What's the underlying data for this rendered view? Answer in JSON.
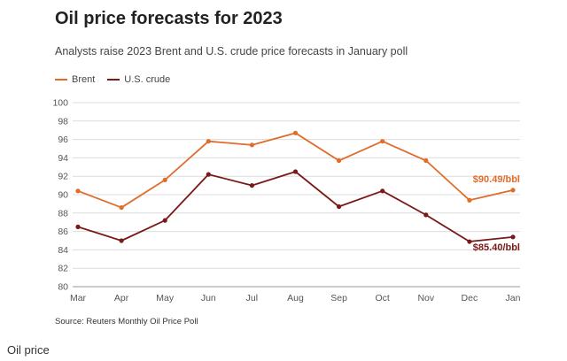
{
  "chart_data": {
    "type": "line",
    "title": "Oil price forecasts for 2023",
    "subtitle": "Analysts raise 2023 Brent and U.S. crude price forecasts in January poll",
    "categories": [
      "Mar",
      "Apr",
      "May",
      "Jun",
      "Jul",
      "Aug",
      "Sep",
      "Oct",
      "Nov",
      "Dec",
      "Jan"
    ],
    "ylim": [
      80,
      100
    ],
    "yticks": [
      80,
      82,
      84,
      86,
      88,
      90,
      92,
      94,
      96,
      98,
      100
    ],
    "grid": true,
    "legend_position": "top-left",
    "series": [
      {
        "name": "Brent",
        "color": "#e06c2a",
        "values": [
          90.4,
          88.6,
          91.6,
          95.8,
          95.4,
          96.7,
          93.7,
          95.8,
          93.7,
          89.4,
          90.49
        ],
        "end_label": "$90.49/bbl"
      },
      {
        "name": "U.S. crude",
        "color": "#7a1a18",
        "values": [
          86.5,
          85.0,
          87.2,
          92.2,
          91.0,
          92.5,
          88.7,
          90.4,
          87.8,
          84.9,
          85.4
        ],
        "end_label": "$85.40/bbl"
      }
    ],
    "source": "Source: Reuters Monthly Oil Price Poll"
  },
  "caption": "Oil price"
}
